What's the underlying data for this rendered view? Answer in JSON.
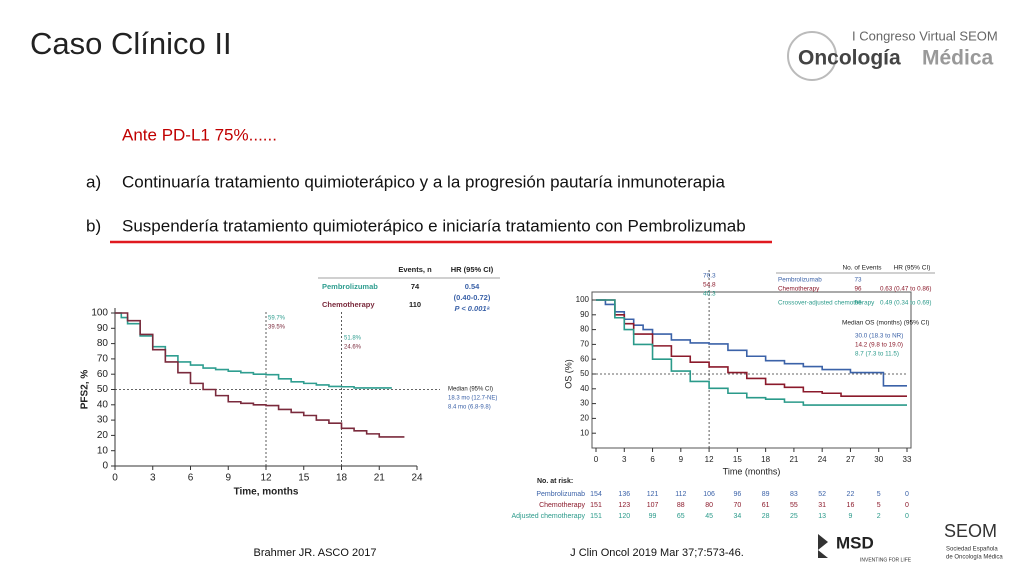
{
  "slide": {
    "title": "Caso Clínico II",
    "logo_top": "I Congreso Virtual SEOM",
    "logo_main": "Oncología",
    "logo_main2": "Médica",
    "question": "Ante PD-L1 75%......",
    "options": [
      {
        "letter": "a)",
        "text": "Continuaría tratamiento quimioterápico y a la progresión pautaría inmunoterapia"
      },
      {
        "letter": "b)",
        "text": "Suspendería tratamiento quimioterápico e iniciaría tratamiento con Pembrolizumab"
      }
    ],
    "footer_left": "Brahmer JR. ASCO 2017",
    "footer_right": "J Clin Oncol 2019 Mar 37;7:573-46.",
    "sponsor": "MSD",
    "sponsor_tagline": "INVENTING FOR LIFE",
    "seom": "SEOM",
    "seom_sub1": "Sociedad Española",
    "seom_sub2": "de Oncología Médica"
  },
  "chart_data": [
    {
      "type": "line",
      "step": true,
      "ylabel": "PFS2, %",
      "xlabel": "Time, months",
      "xlim": [
        0,
        24
      ],
      "xticks": [
        0,
        3,
        6,
        9,
        12,
        15,
        18,
        21,
        24
      ],
      "ylim": [
        0,
        100
      ],
      "yticks": [
        0,
        10,
        20,
        30,
        40,
        50,
        60,
        70,
        80,
        90,
        100
      ],
      "reference_y": 50,
      "reference_x": [
        12,
        18
      ],
      "series": [
        {
          "name": "Pembrolizumab",
          "color": "#2f9e90",
          "x": [
            0,
            0.5,
            1,
            2,
            3,
            4,
            5,
            6,
            7,
            8,
            9,
            10,
            11,
            12,
            13,
            14,
            15,
            16,
            17,
            18,
            19,
            22
          ],
          "values": [
            100,
            97,
            93,
            85,
            78,
            72,
            68,
            66,
            64,
            63,
            62,
            61,
            60,
            59.7,
            57,
            55,
            54,
            53,
            52,
            51.8,
            51,
            51
          ]
        },
        {
          "name": "Chemotherapy",
          "color": "#7a2a3c",
          "x": [
            0,
            1,
            2,
            3,
            4,
            5,
            6,
            7,
            8,
            9,
            10,
            11,
            12,
            13,
            14,
            15,
            16,
            17,
            18,
            19,
            20,
            21,
            23
          ],
          "values": [
            100,
            95,
            86,
            76,
            68,
            61,
            54,
            50,
            46,
            42,
            41,
            40,
            39.5,
            37,
            35,
            33,
            30,
            28,
            24.6,
            23,
            21,
            19,
            19
          ]
        }
      ],
      "table_header": [
        "Events, n",
        "HR (95% CI)"
      ],
      "events": [
        "74",
        "110"
      ],
      "hr": "0.54",
      "hr_ci": "(0.40-0.72)",
      "p_value": "P < 0.001ᵃ",
      "annotations": [
        "59.7%",
        "39.5%",
        "51.8%",
        "24.6%"
      ],
      "median_title": "Median (95% CI)",
      "medians": [
        "18.3 mo (12.7-NE)",
        "8.4 mo (6.8-9.8)"
      ]
    },
    {
      "type": "line",
      "step": true,
      "ylabel": "OS (%)",
      "xlabel": "Time (months)",
      "xlim": [
        0,
        33
      ],
      "xticks": [
        0,
        3,
        6,
        9,
        12,
        15,
        18,
        21,
        24,
        27,
        30,
        33
      ],
      "ylim": [
        0,
        100
      ],
      "yticks": [
        10,
        20,
        30,
        40,
        50,
        60,
        70,
        80,
        90,
        100
      ],
      "reference_y": 50,
      "reference_x": [
        12
      ],
      "series": [
        {
          "name": "Pembrolizumab",
          "color": "#3b62a8",
          "x": [
            0,
            1,
            2,
            3,
            4,
            5,
            6,
            8,
            10,
            12,
            14,
            16,
            18,
            20,
            22,
            24,
            27,
            30,
            30.5,
            33
          ],
          "values": [
            100,
            97,
            92,
            87,
            83,
            80,
            77,
            73,
            71,
            70.3,
            66,
            62,
            59,
            57,
            55,
            53,
            51,
            51,
            42,
            42
          ]
        },
        {
          "name": "Chemotherapy",
          "color": "#8b1a2b",
          "x": [
            0,
            2,
            3,
            4,
            6,
            8,
            10,
            12,
            14,
            16,
            18,
            20,
            22,
            24,
            26,
            30,
            33
          ],
          "values": [
            100,
            90,
            84,
            77,
            69,
            62,
            58,
            54.8,
            51,
            47,
            43,
            41,
            38,
            37,
            35,
            35,
            35
          ]
        },
        {
          "name": "Crossover-adjusted chemotherapy",
          "color": "#2a9a8a",
          "x": [
            0,
            2,
            3,
            4,
            6,
            8,
            10,
            12,
            14,
            16,
            18,
            20,
            22,
            26,
            29,
            33
          ],
          "values": [
            100,
            88,
            80,
            70,
            60,
            52,
            45,
            40.3,
            37,
            34,
            33,
            31,
            29,
            29,
            29,
            29
          ]
        }
      ],
      "annotations": [
        "70.3",
        "54.8",
        "40.3"
      ],
      "table_header": [
        "No. of Events",
        "HR (95% CI)"
      ],
      "events": [
        "73",
        "96",
        "96"
      ],
      "hr": [
        "0.63 (0.47 to 0.86)",
        "0.49 (0.34 to 0.69)"
      ],
      "median_title": "Median OS (months) (95% CI)",
      "medians": [
        "30.0 (18.3 to NR)",
        "14.2 (9.8 to 19.0)",
        "8.7 (7.3 to 11.5)"
      ],
      "at_risk_title": "No. at risk:",
      "at_risk_labels": [
        "Pembrolizumab",
        "Chemotherapy",
        "Adjusted chemotherapy"
      ],
      "at_risk": [
        [
          "154",
          "136",
          "121",
          "112",
          "106",
          "96",
          "89",
          "83",
          "52",
          "22",
          "5",
          "0"
        ],
        [
          "151",
          "123",
          "107",
          "88",
          "80",
          "70",
          "61",
          "55",
          "31",
          "16",
          "5",
          "0"
        ],
        [
          "151",
          "120",
          "99",
          "65",
          "45",
          "34",
          "28",
          "25",
          "13",
          "9",
          "2",
          "0"
        ]
      ]
    }
  ]
}
